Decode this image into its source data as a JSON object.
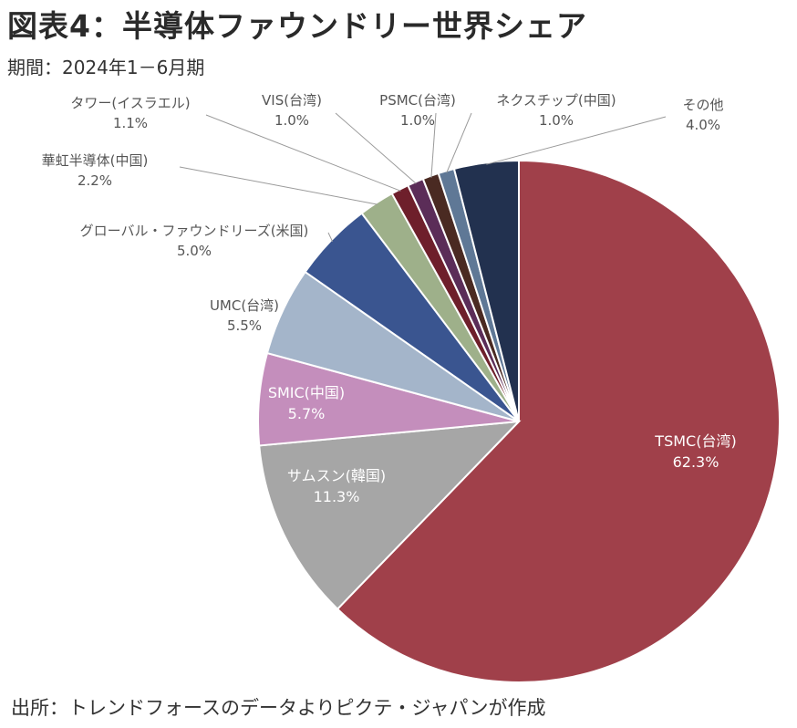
{
  "title": "図表4：半導体ファウンドリー世界シェア",
  "subtitle": "期間：2024年1－6月期",
  "source": "出所：トレンドフォースのデータよりピクテ・ジャパンが作成",
  "chart_data": {
    "type": "pie",
    "title": "図表4：半導体ファウンドリー世界シェア",
    "start": "12 o'clock",
    "direction": "clockwise",
    "slices": [
      {
        "name": "TSMC(台湾)",
        "value": 62.3,
        "display": "62.3%",
        "color": "#A0404A",
        "label_inside": true
      },
      {
        "name": "サムスン(韓国)",
        "value": 11.3,
        "display": "11.3%",
        "color": "#A6A6A6",
        "label_inside": true
      },
      {
        "name": "SMIC(中国)",
        "value": 5.7,
        "display": "5.7%",
        "color": "#C48EBC",
        "label_inside": true
      },
      {
        "name": "UMC(台湾)",
        "value": 5.5,
        "display": "5.5%",
        "color": "#A4B5CA",
        "label_inside": false
      },
      {
        "name": "グローバル・ファウンドリーズ(米国)",
        "value": 5.0,
        "display": "5.0%",
        "color": "#3A5590",
        "label_inside": false
      },
      {
        "name": "華虹半導体(中国)",
        "value": 2.2,
        "display": "2.2%",
        "color": "#9EB08A",
        "label_inside": false
      },
      {
        "name": "タワー(イスラエル)",
        "value": 1.1,
        "display": "1.1%",
        "color": "#6E1F2B",
        "label_inside": false
      },
      {
        "name": "VIS(台湾)",
        "value": 1.0,
        "display": "1.0%",
        "color": "#5B2D58",
        "label_inside": false
      },
      {
        "name": "PSMC(台湾)",
        "value": 1.0,
        "display": "1.0%",
        "color": "#4A2A22",
        "label_inside": false
      },
      {
        "name": "ネクスチップ(中国)",
        "value": 1.0,
        "display": "1.0%",
        "color": "#5F7896",
        "label_inside": false
      },
      {
        "name": "その他",
        "value": 4.0,
        "display": "4.0%",
        "color": "#22314F",
        "label_inside": false
      }
    ]
  }
}
